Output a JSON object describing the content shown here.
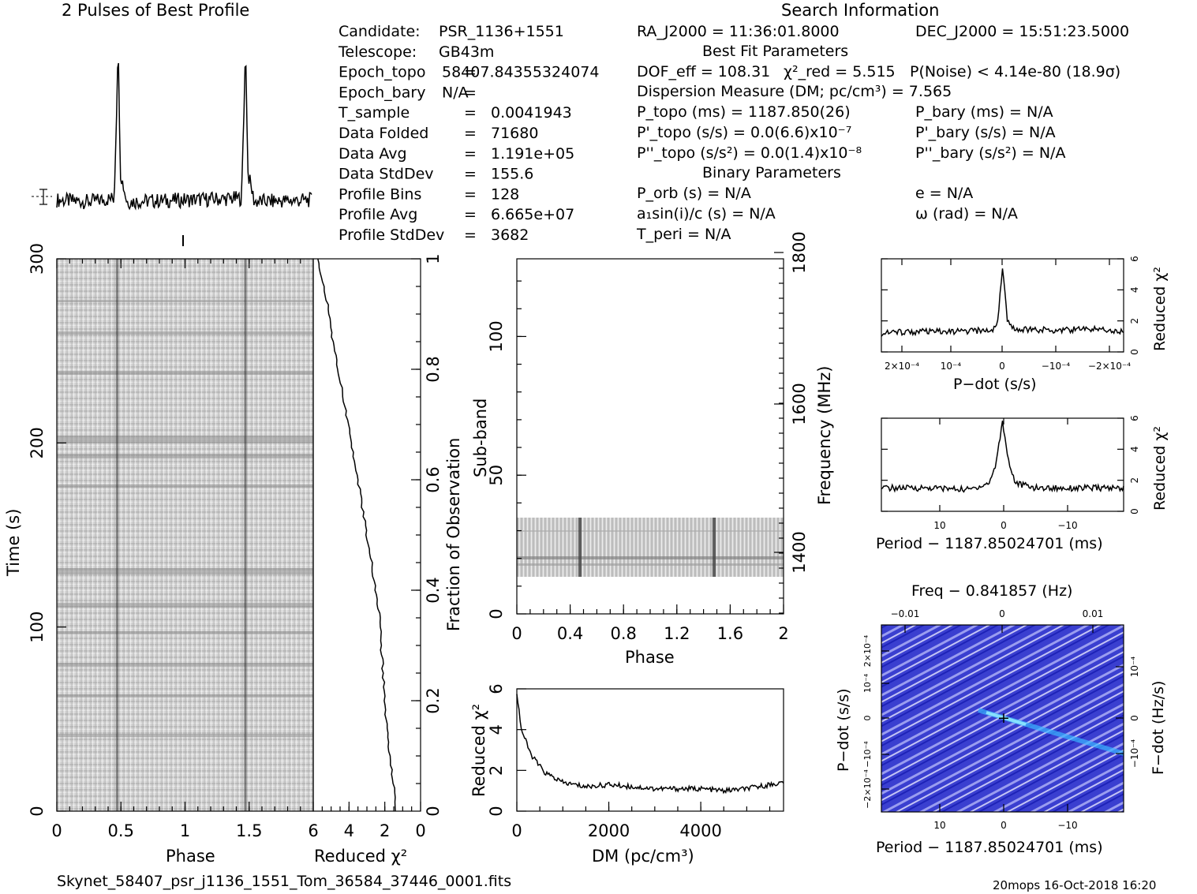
{
  "header": {
    "profile_title": "2 Pulses of Best Profile",
    "search_title": "Search Information",
    "best_fit_title": "Best Fit Parameters",
    "binary_title": "Binary Parameters"
  },
  "info_left": [
    {
      "label": "Candidate:",
      "sep": "",
      "value": "PSR_1136+1551"
    },
    {
      "label": "Telescope:",
      "sep": "",
      "value": "GB43m"
    },
    {
      "label": "Epoch_topo",
      "sep": "=",
      "value": "58407.84355324074"
    },
    {
      "label": "Epoch_bary",
      "sep": "=",
      "value": "N/A"
    },
    {
      "label": "T_sample",
      "sep": "=",
      "value": "0.0041943"
    },
    {
      "label": "Data Folded",
      "sep": "=",
      "value": "71680"
    },
    {
      "label": "Data Avg",
      "sep": "=",
      "value": "1.191e+05"
    },
    {
      "label": "Data StdDev",
      "sep": "=",
      "value": "155.6"
    },
    {
      "label": "Profile Bins",
      "sep": "=",
      "value": "128"
    },
    {
      "label": "Profile Avg",
      "sep": "=",
      "value": "6.665e+07"
    },
    {
      "label": "Profile StdDev",
      "sep": "=",
      "value": "3682"
    }
  ],
  "info_mid": {
    "ra": "RA_J2000 = 11:36:01.8000",
    "dec": "DEC_J2000 = 15:51:23.5000",
    "dof": "DOF_eff = 108.31",
    "chi2": "χ²_red = 5.515",
    "pnoise": "P(Noise) < 4.14e-80   (18.9σ)",
    "dm": "Dispersion Measure (DM; pc/cm³) = 7.565",
    "p_topo": "P_topo (ms) =   1187.850(26)",
    "p_bary": "P_bary (ms) = N/A",
    "pd_topo": "P'_topo (s/s) = 0.0(6.6)x10⁻⁷",
    "pd_bary": "P'_bary (s/s) = N/A",
    "pdd_topo": "P''_topo (s/s²) = 0.0(1.4)x10⁻⁸",
    "pdd_bary": "P''_bary (s/s²) = N/A",
    "p_orb": "P_orb (s) = N/A",
    "ecc": "e = N/A",
    "a1sini": "a₁sin(i)/c (s) = N/A",
    "omega": "ω (rad) = N/A",
    "t_peri": "T_peri = N/A"
  },
  "footer": {
    "filename": "Skynet_58407_psr_j1136_1551_Tom_36584_37446_0001.fits",
    "stamp": "20mops  16-Oct-2018 16:20"
  },
  "chart_data": [
    {
      "type": "line",
      "title": "2 Pulses of Best Profile",
      "x": [
        0.0,
        0.25,
        0.45,
        0.47,
        0.48,
        0.5,
        0.55,
        1.0,
        1.45,
        1.47,
        1.48,
        1.5,
        1.55,
        2.0
      ],
      "y": [
        0.04,
        0.03,
        0.05,
        0.6,
        1.0,
        0.2,
        0.03,
        0.04,
        0.05,
        0.6,
        1.0,
        0.2,
        0.03,
        0.04
      ],
      "xlim": [
        0,
        2
      ],
      "xlabel": "",
      "ylabel": ""
    },
    {
      "type": "heatmap",
      "name": "time-phase",
      "xlabel": "Phase",
      "ylabel": "Time (s)",
      "xlim": [
        0,
        2
      ],
      "ylim": [
        0,
        300
      ],
      "x_ticks": [
        "0",
        "0.5",
        "1",
        "1.5"
      ],
      "y_ticks": [
        "0",
        "100",
        "200",
        "300"
      ],
      "pulse_phases": [
        0.47,
        1.47
      ]
    },
    {
      "type": "line",
      "name": "cumulative-chi2",
      "xlabel": "Reduced χ²",
      "ylabel": "Fraction of Observation",
      "xlim": [
        6,
        0
      ],
      "ylim": [
        0,
        1
      ],
      "x_ticks": [
        "6",
        "4",
        "2",
        "0"
      ],
      "y_ticks": [
        "0.2",
        "0.4",
        "0.6",
        "0.8",
        "1"
      ],
      "x": [
        1.4,
        1.5,
        1.9,
        2.1,
        2.3,
        2.6,
        3.0,
        3.4,
        3.8,
        4.2,
        4.6,
        5.0,
        5.2,
        5.5,
        5.8
      ],
      "y": [
        0.0,
        0.05,
        0.15,
        0.25,
        0.35,
        0.42,
        0.5,
        0.58,
        0.65,
        0.73,
        0.8,
        0.87,
        0.92,
        0.96,
        1.0
      ]
    },
    {
      "type": "heatmap",
      "name": "subband-phase",
      "xlabel": "Phase",
      "ylabel": "Sub-band",
      "ylabel_right": "Frequency (MHz)",
      "xlim": [
        0,
        2
      ],
      "ylim": [
        0,
        128
      ],
      "x_ticks": [
        "0",
        "0.4",
        "0.8",
        "1.2",
        "1.6",
        "2"
      ],
      "y_ticks": [
        "0",
        "50",
        "100"
      ],
      "freq_ticks": [
        "1400",
        "1600",
        "1800"
      ],
      "occupied_subbands": [
        14,
        35
      ],
      "pulse_phases": [
        0.47,
        1.47
      ]
    },
    {
      "type": "line",
      "name": "dm-curve",
      "xlabel": "DM (pc/cm³)",
      "ylabel": "Reduced χ²",
      "xlim": [
        0,
        5800
      ],
      "ylim": [
        0,
        6
      ],
      "x_ticks": [
        "0",
        "2000",
        "4000"
      ],
      "y_ticks": [
        "0",
        "2",
        "4",
        "6"
      ],
      "x": [
        0,
        100,
        300,
        600,
        1000,
        1500,
        2000,
        3000,
        4000,
        4500,
        5000,
        5500,
        5800
      ],
      "y": [
        5.8,
        4.0,
        2.8,
        1.9,
        1.4,
        1.2,
        1.3,
        1.1,
        1.1,
        1.0,
        1.1,
        1.3,
        1.4
      ]
    },
    {
      "type": "line",
      "name": "pdot-chi2",
      "xlabel": "P−dot (s/s)",
      "ylabel": "Reduced χ²",
      "xlim": [
        0.00025,
        -0.00025
      ],
      "ylim": [
        0,
        6
      ],
      "x_ticks": [
        "2×10⁻⁴",
        "10⁻⁴",
        "0",
        "−10⁻⁴",
        "−2×10⁻⁴"
      ],
      "y_ticks": [
        "0",
        "2",
        "4",
        "6"
      ],
      "x": [
        0.00025,
        0.0002,
        0.0001,
        2e-05,
        1e-05,
        0.0,
        -1e-05,
        -2e-05,
        -0.0001,
        -0.0002,
        -0.00025
      ],
      "y": [
        1.2,
        1.3,
        1.3,
        1.4,
        2.0,
        5.5,
        2.0,
        1.5,
        1.4,
        1.5,
        1.3
      ]
    },
    {
      "type": "line",
      "name": "period-chi2",
      "xlabel": "Period − 1187.85024701 (ms)",
      "ylabel": "Reduced χ²",
      "xlim": [
        18,
        -18
      ],
      "ylim": [
        0,
        6
      ],
      "x_ticks": [
        "10",
        "0",
        "−10"
      ],
      "y_ticks": [
        "0",
        "2",
        "4",
        "6"
      ],
      "x": [
        18,
        10,
        5,
        2,
        1,
        0,
        -1,
        -2,
        -5,
        -10,
        -18
      ],
      "y": [
        1.5,
        1.5,
        1.4,
        1.8,
        3.0,
        5.8,
        3.0,
        1.8,
        1.5,
        1.5,
        1.5
      ]
    },
    {
      "type": "heatmap",
      "name": "period-pdot",
      "xlabel": "Period − 1187.85024701 (ms)",
      "xlabel_top": "Freq − 0.841857 (Hz)",
      "ylabel": "P−dot (s/s)",
      "ylabel_right": "F−dot (Hz/s)",
      "xlim": [
        18,
        -18
      ],
      "ylim": [
        -0.00025,
        0.00025
      ],
      "x_ticks": [
        "10",
        "0",
        "−10"
      ],
      "x_ticks_top": [
        "−0.01",
        "0",
        "0.01"
      ],
      "y_ticks": [
        "2×10⁻⁴",
        "10⁻⁴",
        "0",
        "−10⁻⁴",
        "−2×10⁻⁴"
      ],
      "y_ticks_right": [
        "−10⁻⁴",
        "0",
        "10⁻⁴"
      ],
      "best_fit": [
        0,
        0
      ]
    }
  ]
}
